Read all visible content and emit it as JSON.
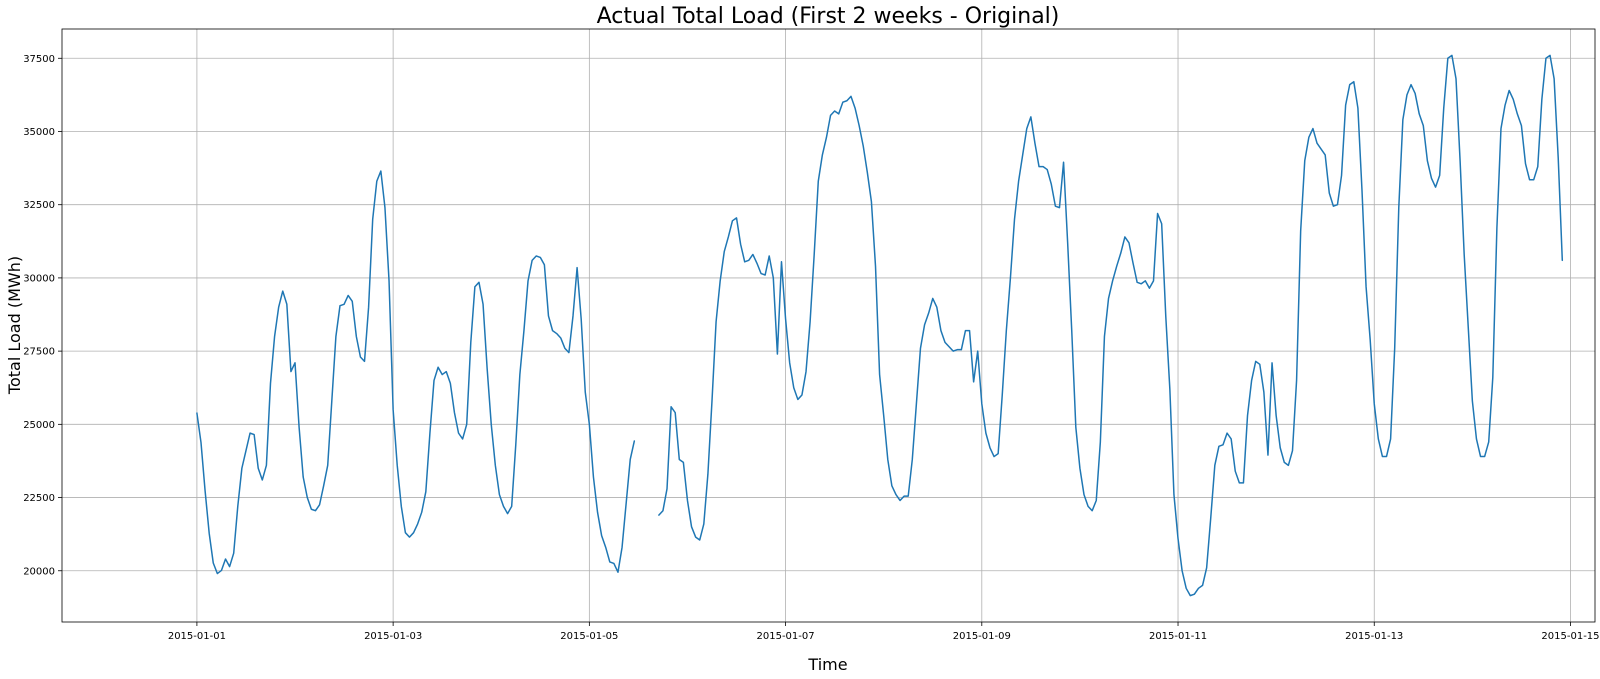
{
  "chart_data": {
    "type": "line",
    "title": "Actual Total Load (First 2 weeks - Original)",
    "xlabel": "Time",
    "ylabel": "Total Load (MWh)",
    "grid": true,
    "xlim": [
      "2014-12-30T15:00",
      "2015-01-15T06:00"
    ],
    "ylim": [
      18250,
      38500
    ],
    "x_ticks": [
      "2015-01-01",
      "2015-01-03",
      "2015-01-05",
      "2015-01-07",
      "2015-01-09",
      "2015-01-11",
      "2015-01-13",
      "2015-01-15"
    ],
    "y_ticks": [
      20000,
      22500,
      25000,
      27500,
      30000,
      32500,
      35000,
      37500
    ],
    "series": [
      {
        "color": "#1f77b4",
        "x_unit": "hours since 2015-01-01 00:00",
        "segments": [
          {
            "start": "2015-01-01T00:00",
            "values": [
              25385,
              24382,
              22734,
              21286,
              20264,
              19905,
              20010,
              20400,
              20142,
              20600,
              22200,
              23500,
              24100,
              24700,
              24650,
              23500,
              23100,
              23600,
              26400,
              28000,
              29000,
              29550,
              29100,
              26800,
              27100,
              24900,
              23200,
              22500,
              22100,
              22050,
              22250,
              22900,
              23600,
              25800,
              28000,
              29050,
              29100,
              29400,
              29200,
              28000,
              27300,
              27150,
              29000,
              32000,
              33300,
              33650,
              32400,
              29900,
              25500,
              23600,
              22200,
              21300,
              21150,
              21300,
              21600,
              22000,
              22700,
              24700,
              26500,
              26950,
              26700,
              26800,
              26400,
              25400,
              24700,
              24500,
              25000,
              27800,
              29700,
              29850,
              29100,
              26900,
              25000,
              23600,
              22600,
              22200,
              21950,
              22200,
              24300,
              26700,
              28200,
              29900,
              30600,
              30750,
              30700,
              30450,
              28700,
              28200,
              28100,
              27950,
              27600,
              27450,
              28700,
              30350,
              28600,
              26100,
              25000,
              23200,
              22000,
              21200,
              20800,
              20300,
              20250,
              19950,
              20800,
              22300,
              23800,
              24430
            ]
          },
          {
            "start": "2015-01-05T17:00",
            "values": [
              21900,
              22050,
              22800,
              25600,
              25400,
              23800,
              23700,
              22400,
              21500,
              21150,
              21050,
              21600,
              23300,
              25800,
              28500,
              29900,
              30900,
              31400,
              31950,
              32050,
              31150,
              30550,
              30600,
              30800,
              30500,
              30150,
              30100,
              30750,
              30000,
              27400,
              30550,
              28600,
              27100,
              26250,
              25850,
              26000,
              26800,
              28500,
              30800,
              33300,
              34200,
              34800,
              35550,
              35700,
              35600,
              36000,
              36050,
              36200,
              35800,
              35200,
              34500,
              33600,
              32600,
              30400,
              26700,
              25300,
              23800,
              22900,
              22600,
              22400,
              22550,
              22550,
              23800,
              25700,
              27600,
              28400,
              28800,
              29300,
              29000,
              28200,
              27800,
              27650,
              27500,
              27550,
              27550,
              28200,
              28200,
              26450,
              27500,
              25700,
              24700,
              24200,
              23900,
              24000,
              26000,
              28200,
              30000,
              32000,
              33300,
              34200,
              35100,
              35500,
              34600,
              33800,
              33800,
              33700,
              33200,
              32450,
              32400,
              33950,
              31200,
              28200,
              24900,
              23500,
              22600,
              22200,
              22050,
              22400,
              24400,
              28000,
              29300,
              29900,
              30400,
              30850,
              31400,
              31200,
              30500,
              29850,
              29800,
              29900,
              29650,
              29900,
              32200,
              31850,
              28700,
              26200,
              22600,
              21100,
              20000,
              19400,
              19150,
              19200,
              19400,
              19500,
              20100,
              21800,
              23600,
              24250,
              24300,
              24700,
              24500,
              23400,
              23000,
              23000,
              25300,
              26500,
              27150,
              27050,
              26100,
              23950,
              27100,
              25300,
              24200,
              23700,
              23600,
              24100,
              26500,
              31600,
              34000,
              34800,
              35100,
              34600,
              34400,
              34200,
              32900,
              32450,
              32500,
              33500,
              35900,
              36600,
              36700,
              35800,
              33000,
              29700,
              27900,
              25700,
              24500,
              23900,
              23900,
              24500,
              27600,
              32400,
              35400,
              36250,
              36600,
              36300,
              35600,
              35200,
              34000,
              33400,
              33100,
              33500,
              35800,
              37500,
              37600,
              36800,
              34000,
              30800,
              28300,
              25800,
              24500,
              23900,
              23900,
              24400,
              26600,
              31700,
              35100,
              35900,
              36400,
              36100,
              35600,
              35200,
              33900,
              33350,
              33350,
              33800,
              36100,
              37500,
              37600,
              36800,
              34100,
              30600
            ]
          }
        ]
      }
    ]
  }
}
